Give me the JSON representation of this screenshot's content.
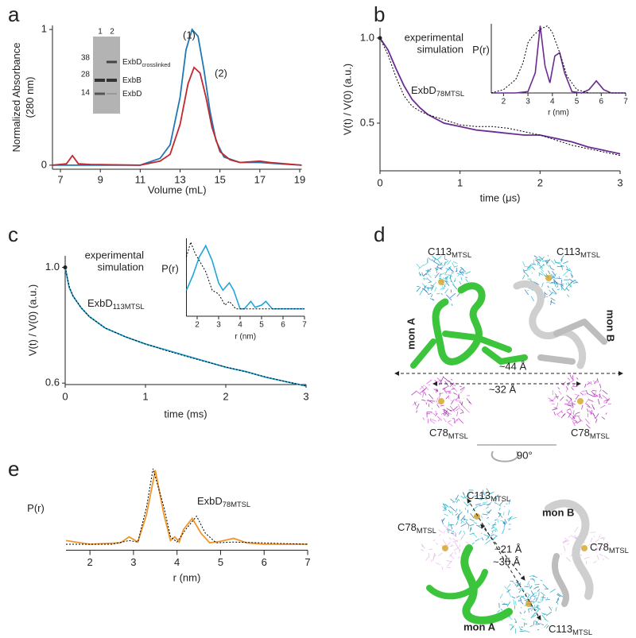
{
  "chart_data": [
    {
      "type": "line",
      "panel": "a",
      "xlabel": "Volume (mL)",
      "ylabel": [
        "Normalized Absorbance",
        "(280 nm)"
      ],
      "xlim": [
        6.6,
        19.1
      ],
      "ylim": [
        -0.03,
        1.03
      ],
      "xticks": [
        7,
        9,
        11,
        13,
        15,
        17,
        19
      ],
      "yticks": [
        0,
        1
      ],
      "series": [
        {
          "name": "(1)",
          "color": "#1f78b4",
          "dash": false,
          "x": [
            6.6,
            11,
            12,
            12.5,
            13,
            13.3,
            13.6,
            13.9,
            14.2,
            14.5,
            14.8,
            15.2,
            16,
            17,
            18,
            19.1
          ],
          "values": [
            0,
            0,
            0.05,
            0.15,
            0.5,
            0.85,
            1.0,
            0.95,
            0.7,
            0.4,
            0.18,
            0.06,
            0.02,
            0.02,
            0.01,
            0
          ]
        },
        {
          "name": "(2)",
          "color": "#c0282d",
          "dash": false,
          "x": [
            6.6,
            7.3,
            7.6,
            7.9,
            8.5,
            11,
            12,
            12.5,
            13,
            13.4,
            13.7,
            14,
            14.3,
            14.6,
            15,
            15.5,
            16,
            17,
            17.5,
            19.1
          ],
          "values": [
            0,
            0.01,
            0.07,
            0.01,
            0.005,
            0,
            0.03,
            0.08,
            0.3,
            0.6,
            0.72,
            0.68,
            0.5,
            0.28,
            0.1,
            0.04,
            0.02,
            0.03,
            0.02,
            0
          ]
        }
      ],
      "gel": {
        "lanes": [
          "1",
          "2"
        ],
        "markers": [
          "38",
          "28",
          "14"
        ],
        "bands": [
          {
            "text": "ExbD",
            "sub": "crosslinked"
          },
          {
            "text": "ExbB",
            "sub": ""
          },
          {
            "text": "ExbD",
            "sub": ""
          }
        ]
      }
    },
    {
      "type": "line",
      "panel": "b",
      "xlabel": "time (μs)",
      "ylabel": [
        "V(t) / V(0) (a.u.)"
      ],
      "xlim": [
        0,
        3
      ],
      "ylim": [
        0.22,
        1.06
      ],
      "xticks": [
        0,
        1,
        2,
        3
      ],
      "yticks": [
        0.5,
        {
          "value": 1,
          "label": "1.0"
        }
      ],
      "annotation": {
        "text": "ExbD",
        "sub": "78MTSL"
      },
      "series": [
        {
          "name": "experimental",
          "color": "#6a2c91",
          "dash": false,
          "x": [
            0,
            0.1,
            0.2,
            0.3,
            0.4,
            0.5,
            0.6,
            0.8,
            1.0,
            1.2,
            1.4,
            1.6,
            1.8,
            2.0,
            2.2,
            2.4,
            2.6,
            2.8,
            3.0
          ],
          "values": [
            1.0,
            0.93,
            0.82,
            0.72,
            0.64,
            0.59,
            0.55,
            0.5,
            0.48,
            0.46,
            0.45,
            0.44,
            0.43,
            0.43,
            0.41,
            0.39,
            0.36,
            0.34,
            0.32
          ]
        },
        {
          "name": "simulation",
          "color": "#000000",
          "dash": true,
          "x": [
            0,
            0.1,
            0.2,
            0.3,
            0.4,
            0.5,
            0.6,
            0.8,
            1.0,
            1.2,
            1.4,
            1.6,
            1.8,
            2.0,
            2.2,
            2.4,
            2.6,
            2.8,
            3.0
          ],
          "values": [
            1.0,
            0.9,
            0.77,
            0.66,
            0.6,
            0.57,
            0.55,
            0.52,
            0.49,
            0.48,
            0.48,
            0.47,
            0.45,
            0.43,
            0.4,
            0.37,
            0.35,
            0.33,
            0.31
          ]
        }
      ]
    },
    {
      "type": "line",
      "xlabel": "r (nm)",
      "ylabel": [
        "P(r)"
      ],
      "xlim": [
        1.5,
        7
      ],
      "ylim": [
        0,
        1.03
      ],
      "xticks": [
        2,
        3,
        4,
        5,
        6,
        7
      ],
      "yticks": [],
      "series": [
        {
          "name": "experimental",
          "color": "#6a2c91",
          "dash": false,
          "x": [
            1.5,
            2.5,
            3.0,
            3.3,
            3.5,
            3.7,
            3.9,
            4.1,
            4.3,
            4.5,
            4.8,
            5.2,
            5.5,
            5.8,
            6.1,
            6.4,
            7
          ],
          "values": [
            0,
            0,
            0.02,
            0.3,
            1.0,
            0.4,
            0.15,
            0.55,
            0.6,
            0.3,
            0.02,
            0,
            0.05,
            0.18,
            0.05,
            0,
            0
          ]
        },
        {
          "name": "simulation",
          "color": "#000000",
          "dash": true,
          "x": [
            1.5,
            2.0,
            2.5,
            2.8,
            3.0,
            3.2,
            3.5,
            3.8,
            4.0,
            4.3,
            4.6,
            5.0,
            5.5,
            7
          ],
          "values": [
            0,
            0.05,
            0.2,
            0.45,
            0.75,
            0.85,
            0.95,
            1.0,
            0.9,
            0.6,
            0.25,
            0.05,
            0,
            0
          ]
        }
      ]
    },
    {
      "type": "line",
      "panel": "c",
      "xlabel": "time (ms)",
      "ylabel": [
        "V(t) / V(0) (a.u.)"
      ],
      "xlim": [
        0,
        3
      ],
      "ylim": [
        0.595,
        1.04
      ],
      "xticks": [
        0,
        1,
        2,
        3
      ],
      "yticks": [
        {
          "value": 0.6,
          "label": "0.6"
        },
        {
          "value": 1,
          "label": "1.0"
        }
      ],
      "annotation": {
        "text": "ExbD",
        "sub": "113MTSL"
      },
      "series": [
        {
          "name": "experimental",
          "color": "#1ea6d8",
          "dash": false,
          "x": [
            0,
            0.05,
            0.1,
            0.2,
            0.3,
            0.5,
            0.75,
            1.0,
            1.25,
            1.5,
            1.75,
            2.0,
            2.25,
            2.5,
            2.75,
            3.0
          ],
          "values": [
            1.0,
            0.93,
            0.9,
            0.86,
            0.83,
            0.79,
            0.76,
            0.735,
            0.715,
            0.695,
            0.675,
            0.655,
            0.64,
            0.62,
            0.605,
            0.59
          ]
        },
        {
          "name": "simulation",
          "color": "#000000",
          "dash": true,
          "x": [
            0,
            0.05,
            0.1,
            0.2,
            0.3,
            0.5,
            0.75,
            1.0,
            1.25,
            1.5,
            1.75,
            2.0,
            2.25,
            2.5,
            2.75,
            3.0
          ],
          "values": [
            1.0,
            0.935,
            0.9,
            0.86,
            0.83,
            0.79,
            0.76,
            0.735,
            0.713,
            0.693,
            0.674,
            0.656,
            0.639,
            0.621,
            0.605,
            0.59
          ]
        }
      ]
    },
    {
      "type": "line",
      "xlabel": "r (nm)",
      "ylabel": [
        "P(r)"
      ],
      "xlim": [
        1.5,
        7
      ],
      "ylim": [
        0,
        1.05
      ],
      "xticks": [
        2,
        3,
        4,
        5,
        6,
        7
      ],
      "yticks": [],
      "series": [
        {
          "name": "experimental",
          "color": "#1ea6d8",
          "dash": false,
          "x": [
            1.5,
            1.8,
            2.1,
            2.4,
            2.7,
            3.0,
            3.2,
            3.5,
            3.7,
            4.0,
            4.2,
            4.5,
            4.7,
            5.0,
            5.2,
            5.5,
            6.0,
            7
          ],
          "values": [
            0.35,
            0.55,
            0.8,
            0.95,
            0.75,
            0.45,
            0.35,
            0.45,
            0.35,
            0.1,
            0.1,
            0.2,
            0.12,
            0.15,
            0.2,
            0.1,
            0.1,
            0.1
          ]
        },
        {
          "name": "simulation",
          "color": "#000000",
          "dash": true,
          "x": [
            1.5,
            1.7,
            1.9,
            2.1,
            2.4,
            2.7,
            3.0,
            3.3,
            3.5,
            3.8,
            4.0,
            7
          ],
          "values": [
            0.8,
            1.0,
            0.85,
            0.75,
            0.6,
            0.35,
            0.3,
            0.15,
            0.2,
            0.1,
            0.1,
            0.1
          ]
        }
      ]
    },
    {
      "type": "line",
      "panel": "e",
      "xlabel": "r (nm)",
      "ylabel": [
        "P(r)"
      ],
      "xlim": [
        1.45,
        7
      ],
      "ylim": [
        -0.08,
        1.03
      ],
      "xticks": [
        2,
        3,
        4,
        5,
        6,
        7
      ],
      "yticks": [],
      "annotation": {
        "text": "ExbD",
        "sub": "78MTSL"
      },
      "series": [
        {
          "name": "experimental",
          "color": "#f0962a",
          "dash": false,
          "x": [
            1.45,
            2.0,
            2.7,
            2.9,
            3.1,
            3.3,
            3.5,
            3.7,
            3.85,
            3.95,
            4.05,
            4.15,
            4.35,
            4.55,
            4.75,
            5.0,
            5.3,
            5.6,
            6.0,
            7
          ],
          "values": [
            0.05,
            0,
            0.02,
            0.1,
            0.03,
            0.4,
            1.0,
            0.4,
            0.05,
            0.1,
            0.03,
            0.2,
            0.35,
            0.15,
            0.02,
            0.04,
            0.08,
            0.02,
            0,
            0
          ]
        },
        {
          "name": "simulation",
          "color": "#000000",
          "dash": true,
          "x": [
            1.45,
            2.5,
            2.9,
            3.1,
            3.3,
            3.45,
            3.7,
            3.85,
            4.0,
            4.2,
            4.45,
            4.65,
            4.9,
            5.3,
            7
          ],
          "values": [
            0,
            0,
            0.05,
            0.03,
            0.5,
            1.02,
            0.5,
            0.1,
            0.03,
            0.2,
            0.38,
            0.15,
            0.02,
            0.03,
            0
          ]
        }
      ]
    }
  ],
  "panel_d": {
    "panel": "d",
    "top": {
      "c113_left": {
        "text": "C113",
        "sub": "MTSL"
      },
      "c113_right": {
        "text": "C113",
        "sub": "MTSL"
      },
      "mon_a": "mon A",
      "mon_b": "mon B",
      "dist_long": "~44 Å",
      "dist_short": "~32 Å",
      "c78_left": {
        "text": "C78",
        "sub": "MTSL"
      },
      "c78_right": {
        "text": "C78",
        "sub": "MTSL"
      }
    },
    "rotation": "90°",
    "bottom": {
      "c113_top": {
        "text": "C113",
        "sub": "MTSL"
      },
      "mon_b": "mon B",
      "c78_left": {
        "text": "C78",
        "sub": "MTSL"
      },
      "dist_short": "~21 Å",
      "dist_long": "~35 Å",
      "c78_right": {
        "text": "C78",
        "sub": "MTSL"
      },
      "mon_a": "mon A",
      "c113_bottom": {
        "text": "C113",
        "sub": "MTSL"
      }
    }
  }
}
